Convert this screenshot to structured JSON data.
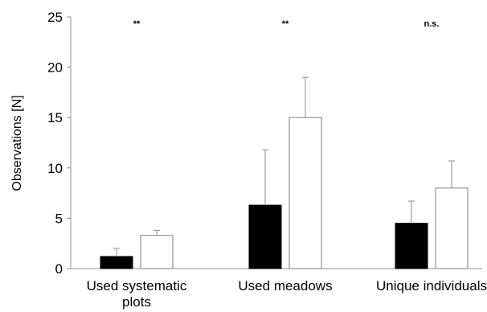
{
  "chart_data": {
    "type": "bar",
    "title": "",
    "xlabel": "",
    "ylabel": "Observations [N]",
    "ylim": [
      0,
      25
    ],
    "yticks": [
      0,
      5,
      10,
      15,
      20,
      25
    ],
    "grid": false,
    "legend": "none",
    "categories": [
      [
        "Used systematic",
        "plots"
      ],
      [
        "Used meadows"
      ],
      [
        "Unique individuals"
      ]
    ],
    "series": [
      {
        "fill": "#000000",
        "values": [
          1.2,
          6.3,
          4.5
        ],
        "error": [
          0.8,
          5.5,
          2.2
        ]
      },
      {
        "fill": "#ffffff",
        "values": [
          3.3,
          15.0,
          8.0
        ],
        "error": [
          0.5,
          4.0,
          2.7
        ]
      }
    ],
    "significance": [
      "**",
      "**",
      "n.s."
    ]
  }
}
